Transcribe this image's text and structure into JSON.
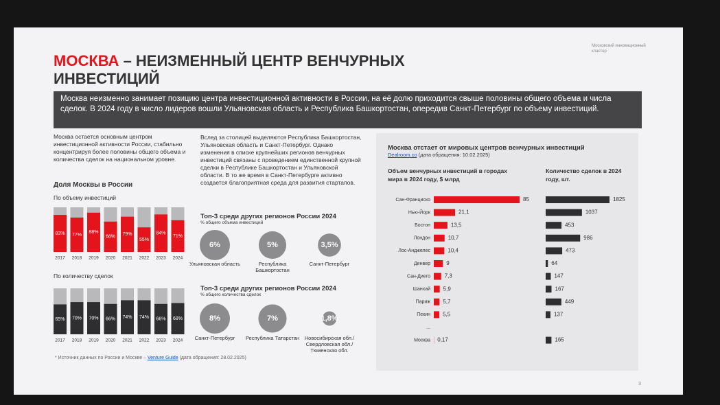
{
  "header": {
    "title_accent": "МОСКВА",
    "title": "– НЕИЗМЕННЫЙ ЦЕНТР ВЕНЧУРНЫХ ИНВЕСТИЦИЙ",
    "logo": "Московский инновационный кластер",
    "banner": "Москва неизменно занимает позицию центра инвестиционной активности в России, на её долю приходится свыше половины общего объема и числа сделок. В 2024 году в число лидеров вошли Ульяновская область и Республика Башкортостан, опередив Санкт-Петербург по объему инвестиций."
  },
  "left": {
    "text": "Москва остается основным центром инвестиционной активности России, стабильно концентрируя более половины общего объема и количества сделок на национальном уровне.",
    "heading": "Доля Москвы в России"
  },
  "middle": {
    "text": "Вслед за столицей выделяются Республика Башкортостан, Ульяновская область и Санкт-Петербург. Однако изменения в списке крупнейших регионов венчурных инвестиций связаны с проведением единственной крупной сделки в Республике Башкортостан и Ульяновской области. В то же время в Санкт-Петербурге активно создается благоприятная среда для развития стартапов."
  },
  "panel": {
    "title": "Москва отстает от мировых центров венчурных инвестиций",
    "source": "Dealroom.co",
    "source_date": "(дата обращения: 10.02.2025)"
  },
  "footer": {
    "note": "* Источник данных по России и Москве –",
    "link": "Venture Guide",
    "date": "(дата обращения: 28.02.2025)",
    "page": "3"
  },
  "chart_data": [
    {
      "type": "bar",
      "subtitle": "По объему инвестиций",
      "categories": [
        "2017",
        "2018",
        "2019",
        "2020",
        "2021",
        "2022",
        "2023",
        "2024"
      ],
      "values": [
        83,
        77,
        88,
        68,
        79,
        55,
        84,
        71
      ],
      "value_labels": [
        "83%",
        "77%",
        "88%",
        "68%",
        "79%",
        "55%",
        "84%",
        "71%"
      ],
      "color": "#e3141c",
      "ylim": [
        0,
        100
      ]
    },
    {
      "type": "bar",
      "subtitle": "По количеству сделок",
      "categories": [
        "2017",
        "2018",
        "2019",
        "2020",
        "2021",
        "2022",
        "2023",
        "2024"
      ],
      "values": [
        65,
        70,
        70,
        66,
        74,
        74,
        66,
        68
      ],
      "value_labels": [
        "65%",
        "70%",
        "70%",
        "66%",
        "74%",
        "74%",
        "66%",
        "68%"
      ],
      "color": "#2e2e30",
      "ylim": [
        0,
        100
      ]
    },
    {
      "type": "bubble",
      "title": "Топ-3 среди других регионов России 2024",
      "subtitle": "% общего объема инвестиций",
      "categories": [
        "Ульяновская область",
        "Республика Башкортостан",
        "Санкт-Петербург"
      ],
      "values": [
        6,
        5,
        3.5
      ],
      "value_labels": [
        "6%",
        "5%",
        "3,5%"
      ],
      "color": "#8c8c8e"
    },
    {
      "type": "bubble",
      "title": "Топ-3 среди других регионов России 2024",
      "subtitle": "% общего количества сделок",
      "categories": [
        "Санкт-Петербург",
        "Республика Татарстан",
        "Новосибирская обл./ Свердловская обл./ Тюменская обл."
      ],
      "values": [
        8,
        7,
        1.8
      ],
      "value_labels": [
        "8%",
        "7%",
        "1,8%"
      ],
      "color": "#8c8c8e"
    },
    {
      "type": "hbar",
      "title": "Объем венчурных инвестиций в городах мира в 2024 году, $ млрд",
      "categories": [
        "Сан-Франциско",
        "Нью-Йорк",
        "Бостон",
        "Лондон",
        "Лос-Анджелес",
        "Денвер",
        "Сан-Диего",
        "Шанхай",
        "Париж",
        "Пекин",
        "...",
        "Москва"
      ],
      "values": [
        85,
        21.1,
        13.5,
        10.7,
        10.4,
        9,
        7.3,
        5.9,
        5.7,
        5.5,
        null,
        0.17
      ],
      "value_labels": [
        "85",
        "21,1",
        "13,5",
        "10,7",
        "10,4",
        "9",
        "7,3",
        "5,9",
        "5,7",
        "5,5",
        null,
        "0,17"
      ],
      "color": "#e3141c",
      "xlim": [
        0,
        85
      ]
    },
    {
      "type": "hbar",
      "title": "Количество сделок в 2024 году, шт.",
      "values": [
        1825,
        1037,
        453,
        986,
        473,
        64,
        147,
        167,
        449,
        137,
        null,
        165
      ],
      "color": "#2e2e30",
      "xlim": [
        0,
        1825
      ]
    }
  ]
}
